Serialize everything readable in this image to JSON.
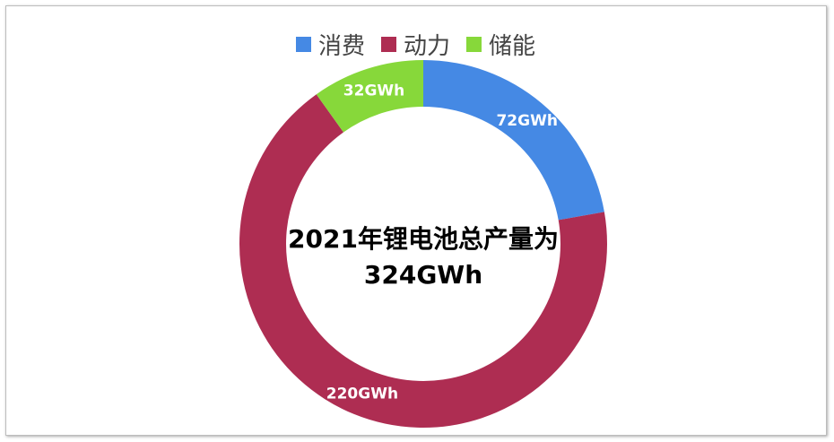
{
  "chart_data": {
    "type": "pie",
    "donut": true,
    "categories": [
      "消费",
      "动力",
      "储能"
    ],
    "values": [
      72,
      220,
      32
    ],
    "unit": "GWh",
    "data_labels": [
      "72GWh",
      "220GWh",
      "32GWh"
    ],
    "colors": [
      "#4589e4",
      "#ae2d52",
      "#87d83a"
    ],
    "legend_placement": "top",
    "center_text": [
      "2021年锂电池总产量为",
      "324GWh"
    ]
  }
}
